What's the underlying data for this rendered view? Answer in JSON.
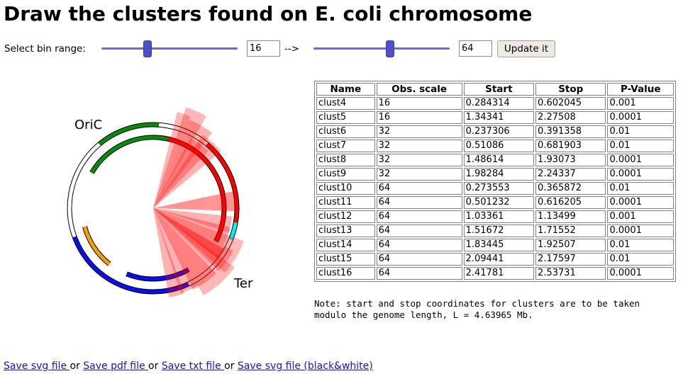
{
  "page": {
    "title": "Draw the clusters found on E. coli chromosome"
  },
  "controls": {
    "select_label": "Select bin range:",
    "arrow": "-->",
    "from_value": "16",
    "to_value": "64",
    "from_slider_level": 0.34,
    "to_slider_level": 0.56,
    "update_label": "Update it"
  },
  "diagram": {
    "oric_label": "OriC",
    "ter_label": "Ter"
  },
  "table": {
    "headers": [
      "Name",
      "Obs. scale",
      "Start",
      "Stop",
      "P-Value"
    ],
    "rows": [
      [
        "clust4",
        "16",
        "0.284314",
        "0.602045",
        "0.001"
      ],
      [
        "clust5",
        "16",
        "1.34341",
        "2.27508",
        "0.0001"
      ],
      [
        "clust6",
        "32",
        "0.237306",
        "0.391358",
        "0.01"
      ],
      [
        "clust7",
        "32",
        "0.51086",
        "0.681903",
        "0.01"
      ],
      [
        "clust8",
        "32",
        "1.48614",
        "1.93073",
        "0.0001"
      ],
      [
        "clust9",
        "32",
        "1.98284",
        "2.24337",
        "0.0001"
      ],
      [
        "clust10",
        "64",
        "0.273553",
        "0.365872",
        "0.01"
      ],
      [
        "clust11",
        "64",
        "0.501232",
        "0.616205",
        "0.0001"
      ],
      [
        "clust12",
        "64",
        "1.03361",
        "1.13499",
        "0.001"
      ],
      [
        "clust13",
        "64",
        "1.51672",
        "1.71552",
        "0.0001"
      ],
      [
        "clust14",
        "64",
        "1.83445",
        "1.92507",
        "0.01"
      ],
      [
        "clust15",
        "64",
        "2.09441",
        "2.17597",
        "0.01"
      ],
      [
        "clust16",
        "64",
        "2.41781",
        "2.53731",
        "0.0001"
      ]
    ]
  },
  "note": "Note: start and stop coordinates for clusters are to be taken modulo the genome length, L = 4.63965 Mb.",
  "links": {
    "save_svg": "Save svg file ",
    "save_pdf": "Save pdf file ",
    "save_txt": "Save txt file ",
    "save_svg_bw": "Save svg file (black&white)",
    "or": " or "
  },
  "colors": {
    "slider": "#5050c6",
    "ring_green": "#0a8a0a",
    "ring_orange": "#f5a000",
    "ring_blue": "#0c0cf0",
    "ring_red": "#ff0000",
    "ring_cyan": "#00f0f0",
    "link": "#1515c8"
  }
}
